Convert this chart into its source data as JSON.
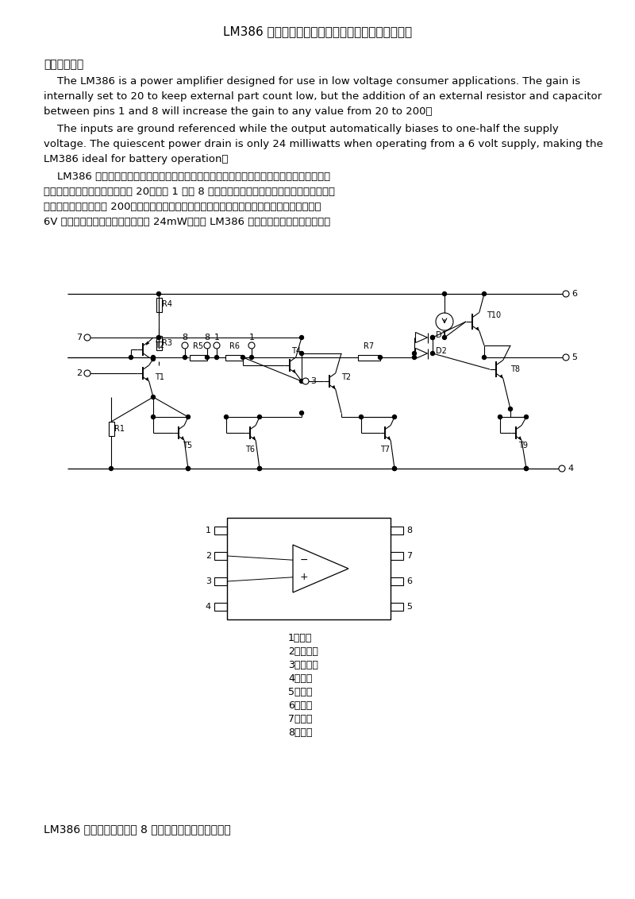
{
  "title": "LM386 低电压音频功率放大器的原理与典型应用电路",
  "section1": "一、特性原理",
  "para1_lines": [
    "    The LM386 is a power amplifier designed for use in low voltage consumer applications. The gain is",
    "internally set to 20 to keep external part count low, but the addition of an external resistor and capacitor",
    "between pins 1 and 8 will increase the gain to any value from 20 to 200。"
  ],
  "para2_lines": [
    "    The inputs are ground referenced while the output automatically biases to one-half the supply",
    "voltage. The quiescent power drain is only 24 milliwatts when operating from a 6 volt supply, making the",
    "LM386 ideal for battery operation。"
  ],
  "para3_lines": [
    "    LM386 是美国国家半导体公司生产的音频功率放大器，主要应用于低电压消费类产品。为使",
    "外围元件最少，电压增益内置为 20。但在 1 脚和 8 脚之间增加一只外接电阻和电容，便可将电压",
    "增益调为任意值，直至 200。输入端以地位参考，同时输出端被自动偏置到电源电压的一半，在",
    "6V 电源电压下，它的静态功耗仅为 24mW，使得 LM386 特别适用于电池供电的场合。"
  ],
  "pin_labels": [
    "1：增益",
    "2：输入－",
    "3：输入＋",
    "4：接地",
    "5：输出",
    "6：电源",
    "7：旁路",
    "8：增益"
  ],
  "footer": "LM386 的封装形式有塑封 8 引线双列直插式和贴片式。",
  "bg_color": "#ffffff",
  "text_color": "#000000"
}
